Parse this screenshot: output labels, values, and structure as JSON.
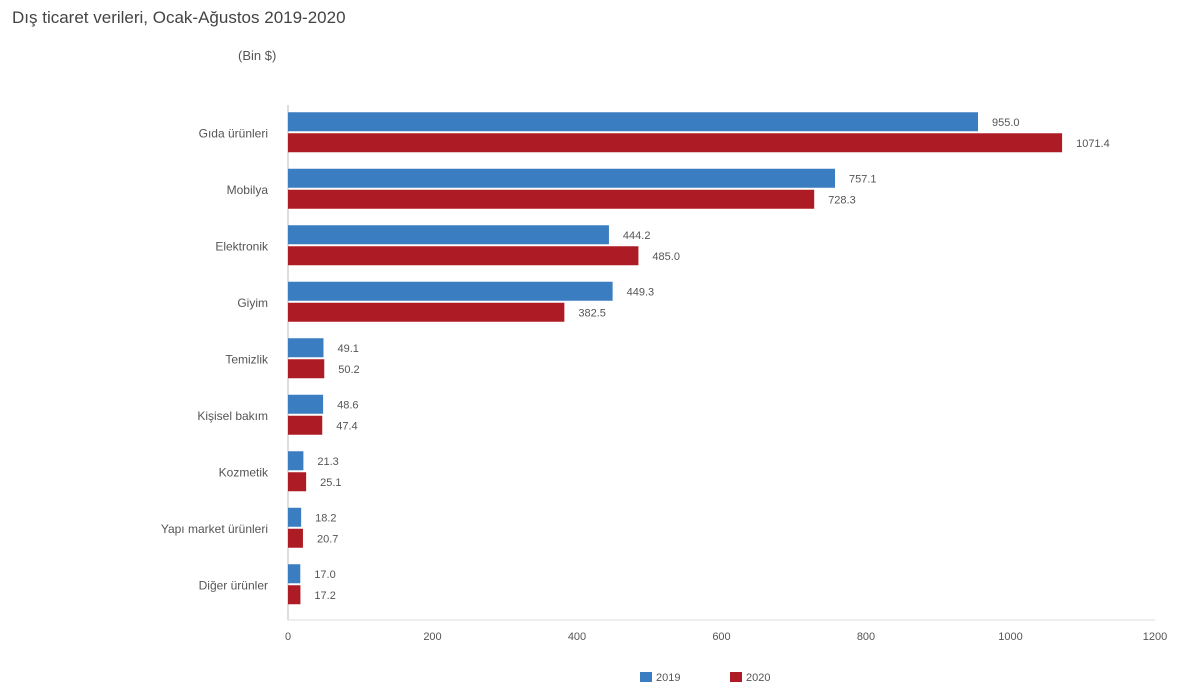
{
  "chart_data": {
    "type": "bar",
    "orientation": "horizontal",
    "title": "Dış ticaret verileri, Ocak-Ağustos 2019-2020",
    "subtitle": "(Bin $)",
    "categories": [
      "Gıda ürünleri",
      "Mobilya",
      "Elektronik",
      "Giyim",
      "Temizlik",
      "Kişisel bakım",
      "Kozmetik",
      "Yapı market ürünleri",
      "Diğer ürünler"
    ],
    "series": [
      {
        "name": "2019",
        "color": "#3a7dc0",
        "values": [
          955.0,
          757.1,
          444.2,
          449.3,
          49.1,
          48.6,
          21.3,
          18.2,
          17.0
        ]
      },
      {
        "name": "2020",
        "color": "#ad1c24",
        "values": [
          1071.4,
          728.3,
          485.0,
          382.5,
          50.2,
          47.4,
          25.1,
          20.7,
          17.2
        ]
      }
    ],
    "xlim": [
      0,
      1200
    ],
    "xticks": [
      0,
      200,
      400,
      600,
      800,
      1000,
      1200
    ],
    "legend": "bottom",
    "grid": false
  }
}
